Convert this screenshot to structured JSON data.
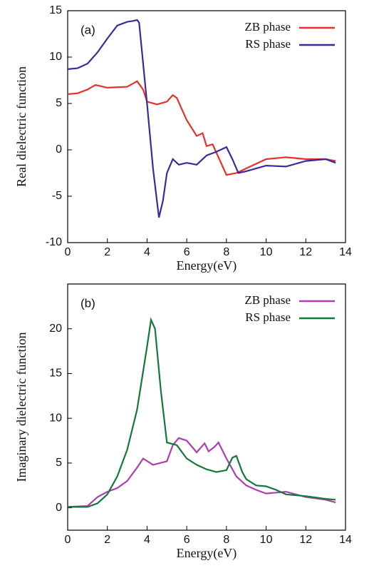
{
  "chart_data": [
    {
      "type": "line",
      "panel_label": "(a)",
      "x_label": "Energy(eV)",
      "y_label": "Real dielectric function",
      "xlim": [
        0,
        14
      ],
      "xticks": [
        0,
        2,
        4,
        6,
        8,
        10,
        12,
        14
      ],
      "ylim": [
        -10,
        15
      ],
      "yticks": [
        -10,
        -5,
        0,
        5,
        10,
        15
      ],
      "series": [
        {
          "name": "ZB phase",
          "color": "#e8302a",
          "x": [
            0,
            0.5,
            1,
            1.4,
            2,
            3,
            3.5,
            3.8,
            4,
            4.5,
            5,
            5.3,
            5.5,
            6,
            6.5,
            6.8,
            7,
            7.3,
            7.6,
            8,
            8.5,
            9,
            10,
            11,
            12,
            13,
            13.5
          ],
          "values": [
            6.0,
            6.1,
            6.5,
            7.0,
            6.7,
            6.8,
            7.4,
            6.5,
            5.2,
            4.9,
            5.2,
            5.9,
            5.6,
            3.2,
            1.5,
            1.8,
            0.4,
            0.6,
            -0.8,
            -2.7,
            -2.5,
            -2.0,
            -1.0,
            -0.8,
            -1.0,
            -1.0,
            -1.2
          ]
        },
        {
          "name": "RS phase",
          "color": "#3a2a9a",
          "x": [
            0,
            0.5,
            1,
            1.5,
            2,
            2.5,
            3,
            3.3,
            3.5,
            3.6,
            4,
            4.3,
            4.6,
            4.8,
            5,
            5.3,
            5.6,
            6,
            6.5,
            7,
            7.5,
            8,
            8.3,
            8.6,
            9,
            10,
            11,
            12,
            13,
            13.5
          ],
          "values": [
            8.7,
            8.8,
            9.3,
            10.5,
            12.0,
            13.4,
            13.8,
            13.9,
            14.0,
            13.7,
            5.0,
            -2.0,
            -7.3,
            -5.5,
            -2.5,
            -1.0,
            -1.6,
            -1.4,
            -1.6,
            -0.6,
            -0.2,
            0.3,
            -1.0,
            -2.5,
            -2.3,
            -1.7,
            -1.8,
            -1.2,
            -1.0,
            -1.4
          ]
        }
      ]
    },
    {
      "type": "line",
      "panel_label": "(b)",
      "x_label": "Energy(eV)",
      "y_label": "Imaginary dielectric function",
      "xlim": [
        0,
        14
      ],
      "xticks": [
        0,
        2,
        4,
        6,
        8,
        10,
        12,
        14
      ],
      "ylim": [
        -2.5,
        25
      ],
      "yticks": [
        0,
        5,
        10,
        15,
        20
      ],
      "series": [
        {
          "name": "ZB phase",
          "color": "#b03cb0",
          "x": [
            0,
            1,
            1.5,
            2,
            2.5,
            3,
            3.5,
            3.8,
            4.3,
            5,
            5.3,
            5.6,
            6,
            6.5,
            6.9,
            7.1,
            7.4,
            7.6,
            8,
            8.5,
            9,
            9.5,
            10,
            11,
            12,
            13,
            13.5
          ],
          "values": [
            0.1,
            0.2,
            1.2,
            1.8,
            2.2,
            3.0,
            4.5,
            5.5,
            4.8,
            5.2,
            7.0,
            7.8,
            7.5,
            6.2,
            7.2,
            6.3,
            6.8,
            7.3,
            5.5,
            3.5,
            2.5,
            2.0,
            1.6,
            1.8,
            1.2,
            0.9,
            0.6
          ]
        },
        {
          "name": "RS phase",
          "color": "#117a3a",
          "x": [
            0,
            1,
            1.5,
            2,
            2.5,
            3,
            3.5,
            4,
            4.2,
            4.4,
            4.7,
            5,
            5.5,
            6,
            6.5,
            7,
            7.5,
            8,
            8.3,
            8.5,
            8.8,
            9,
            9.5,
            10,
            10.5,
            11,
            12,
            13,
            13.5
          ],
          "values": [
            0.1,
            0.1,
            0.5,
            1.5,
            3.5,
            6.5,
            11,
            18,
            21,
            20,
            13,
            7.3,
            7.0,
            5.5,
            4.8,
            4.3,
            4.0,
            4.2,
            5.6,
            5.8,
            4.0,
            3.2,
            2.5,
            2.4,
            2.0,
            1.5,
            1.3,
            1.0,
            0.9
          ]
        }
      ]
    }
  ]
}
